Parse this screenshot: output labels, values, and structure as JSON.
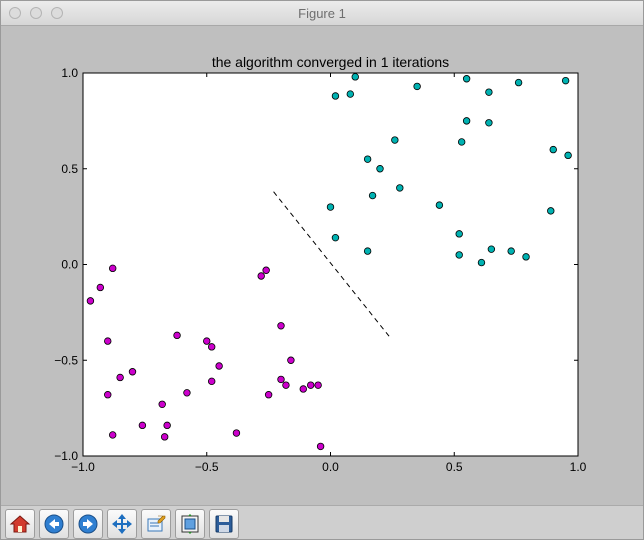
{
  "window": {
    "title": "Figure 1"
  },
  "toolbar": {
    "buttons": [
      {
        "name": "home-icon"
      },
      {
        "name": "back-arrow-icon"
      },
      {
        "name": "forward-arrow-icon"
      },
      {
        "name": "pan-icon"
      },
      {
        "name": "zoom-icon"
      },
      {
        "name": "subplots-icon"
      },
      {
        "name": "save-icon"
      }
    ]
  },
  "chart_data": {
    "type": "scatter",
    "title": "the algorithm converged in 1 iterations",
    "xlabel": "",
    "ylabel": "",
    "xlim": [
      -1.0,
      1.0
    ],
    "ylim": [
      -1.0,
      1.0
    ],
    "xticks": [
      "−1.0",
      "−0.5",
      "0.0",
      "0.5",
      "1.0"
    ],
    "xtick_values": [
      -1.0,
      -0.5,
      0.0,
      0.5,
      1.0
    ],
    "yticks": [
      "1.0",
      "0.5",
      "0.0",
      "−0.5",
      "−1.0"
    ],
    "ytick_values": [
      1.0,
      0.5,
      0.0,
      -0.5,
      -1.0
    ],
    "grid": false,
    "series": [
      {
        "color": "#cc00cc",
        "points": [
          [
            -0.97,
            -0.19
          ],
          [
            -0.93,
            -0.12
          ],
          [
            -0.88,
            -0.02
          ],
          [
            -0.9,
            -0.4
          ],
          [
            -0.9,
            -0.68
          ],
          [
            -0.88,
            -0.89
          ],
          [
            -0.85,
            -0.59
          ],
          [
            -0.8,
            -0.56
          ],
          [
            -0.76,
            -0.84
          ],
          [
            -0.68,
            -0.73
          ],
          [
            -0.67,
            -0.9
          ],
          [
            -0.66,
            -0.84
          ],
          [
            -0.62,
            -0.37
          ],
          [
            -0.58,
            -0.67
          ],
          [
            -0.5,
            -0.4
          ],
          [
            -0.48,
            -0.43
          ],
          [
            -0.48,
            -0.61
          ],
          [
            -0.45,
            -0.53
          ],
          [
            -0.38,
            -0.88
          ],
          [
            -0.28,
            -0.06
          ],
          [
            -0.26,
            -0.03
          ],
          [
            -0.25,
            -0.68
          ],
          [
            -0.2,
            -0.32
          ],
          [
            -0.2,
            -0.6
          ],
          [
            -0.18,
            -0.63
          ],
          [
            -0.16,
            -0.5
          ],
          [
            -0.11,
            -0.65
          ],
          [
            -0.08,
            -0.63
          ],
          [
            -0.05,
            -0.63
          ],
          [
            -0.04,
            -0.95
          ]
        ]
      },
      {
        "color": "#00b2b2",
        "points": [
          [
            0.0,
            0.3
          ],
          [
            0.02,
            0.88
          ],
          [
            0.02,
            0.14
          ],
          [
            0.08,
            0.89
          ],
          [
            0.1,
            0.98
          ],
          [
            0.15,
            0.55
          ],
          [
            0.15,
            0.07
          ],
          [
            0.17,
            0.36
          ],
          [
            0.2,
            0.5
          ],
          [
            0.26,
            0.65
          ],
          [
            0.28,
            0.4
          ],
          [
            0.35,
            0.93
          ],
          [
            0.44,
            0.31
          ],
          [
            0.52,
            0.16
          ],
          [
            0.52,
            0.05
          ],
          [
            0.53,
            0.64
          ],
          [
            0.55,
            0.97
          ],
          [
            0.55,
            0.75
          ],
          [
            0.61,
            0.01
          ],
          [
            0.64,
            0.9
          ],
          [
            0.64,
            0.74
          ],
          [
            0.65,
            0.08
          ],
          [
            0.73,
            0.07
          ],
          [
            0.76,
            0.95
          ],
          [
            0.79,
            0.04
          ],
          [
            0.89,
            0.28
          ],
          [
            0.9,
            0.6
          ],
          [
            0.95,
            0.96
          ],
          [
            0.96,
            0.57
          ]
        ]
      }
    ],
    "boundary": {
      "x": [
        -0.23,
        0.24
      ],
      "y": [
        0.38,
        -0.38
      ],
      "style": "dashed",
      "color": "#000000"
    }
  }
}
